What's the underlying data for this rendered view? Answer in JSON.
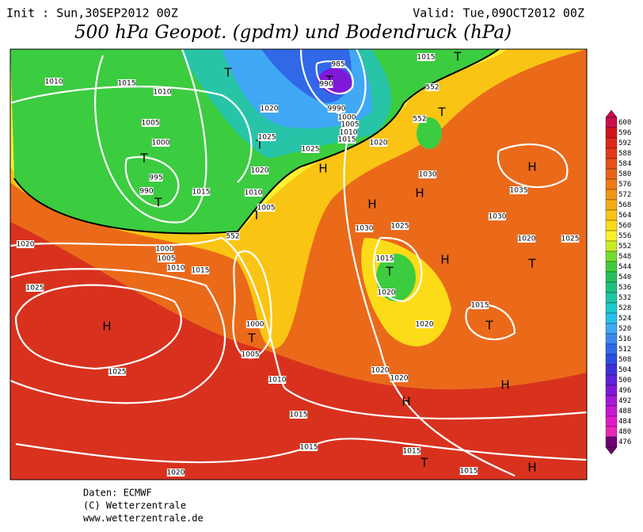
{
  "header": {
    "init": "Init : Sun,30SEP2012 00Z",
    "valid": "Valid: Tue,09OCT2012 00Z",
    "title": "500 hPa Geopot. (gpdm) und Bodendruck (hPa)"
  },
  "footer": {
    "source": "Daten: ECMWF",
    "copyright": "(C) Wetterzentrale",
    "url": "www.wetterzentrale.de"
  },
  "colorbar": {
    "levels": [
      600,
      596,
      592,
      588,
      584,
      580,
      576,
      572,
      568,
      564,
      560,
      556,
      552,
      548,
      544,
      540,
      536,
      532,
      528,
      524,
      520,
      516,
      512,
      508,
      504,
      500,
      496,
      492,
      488,
      484,
      480,
      476
    ],
    "colors": [
      "#c8104a",
      "#d0141e",
      "#dc2a1a",
      "#e23c1a",
      "#e6501a",
      "#ea6418",
      "#ee7a18",
      "#f29418",
      "#f6ac14",
      "#fac414",
      "#fcdc18",
      "#fcf02c",
      "#c8ec28",
      "#74dc30",
      "#40cc3c",
      "#28c05c",
      "#20c080",
      "#20c4a4",
      "#20c8cc",
      "#28c0ec",
      "#40a8f4",
      "#3c88f0",
      "#3068e8",
      "#2c4ce0",
      "#4030d8",
      "#6020d8",
      "#8018d8",
      "#a818d8",
      "#c818d0",
      "#e01cc8",
      "#e828b8",
      "#700070"
    ]
  },
  "map": {
    "labels": [
      "H",
      "H",
      "H",
      "H",
      "H",
      "H",
      "H",
      "H",
      "H",
      "T",
      "T",
      "T",
      "T",
      "T",
      "T",
      "T",
      "T",
      "T",
      "T",
      "T",
      "T",
      "T",
      "1015",
      "1010",
      "1015",
      "1010",
      "1020",
      "1005",
      "1000",
      "1025",
      "1025",
      "1020",
      "1015",
      "1005",
      "1010",
      "1000",
      "9990",
      "990",
      "985",
      "995",
      "990",
      "1015",
      "1010",
      "1005",
      "1020",
      "1030",
      "1030",
      "1025",
      "1030",
      "1035",
      "1020",
      "1025",
      "1020",
      "1000",
      "1005",
      "1010",
      "1015",
      "1025",
      "1015",
      "1020",
      "1020",
      "1015",
      "1000",
      "1005",
      "1010",
      "1025",
      "1020",
      "1020",
      "1015",
      "1015",
      "1015",
      "1020",
      "1015",
      "552",
      "552",
      "552"
    ]
  }
}
